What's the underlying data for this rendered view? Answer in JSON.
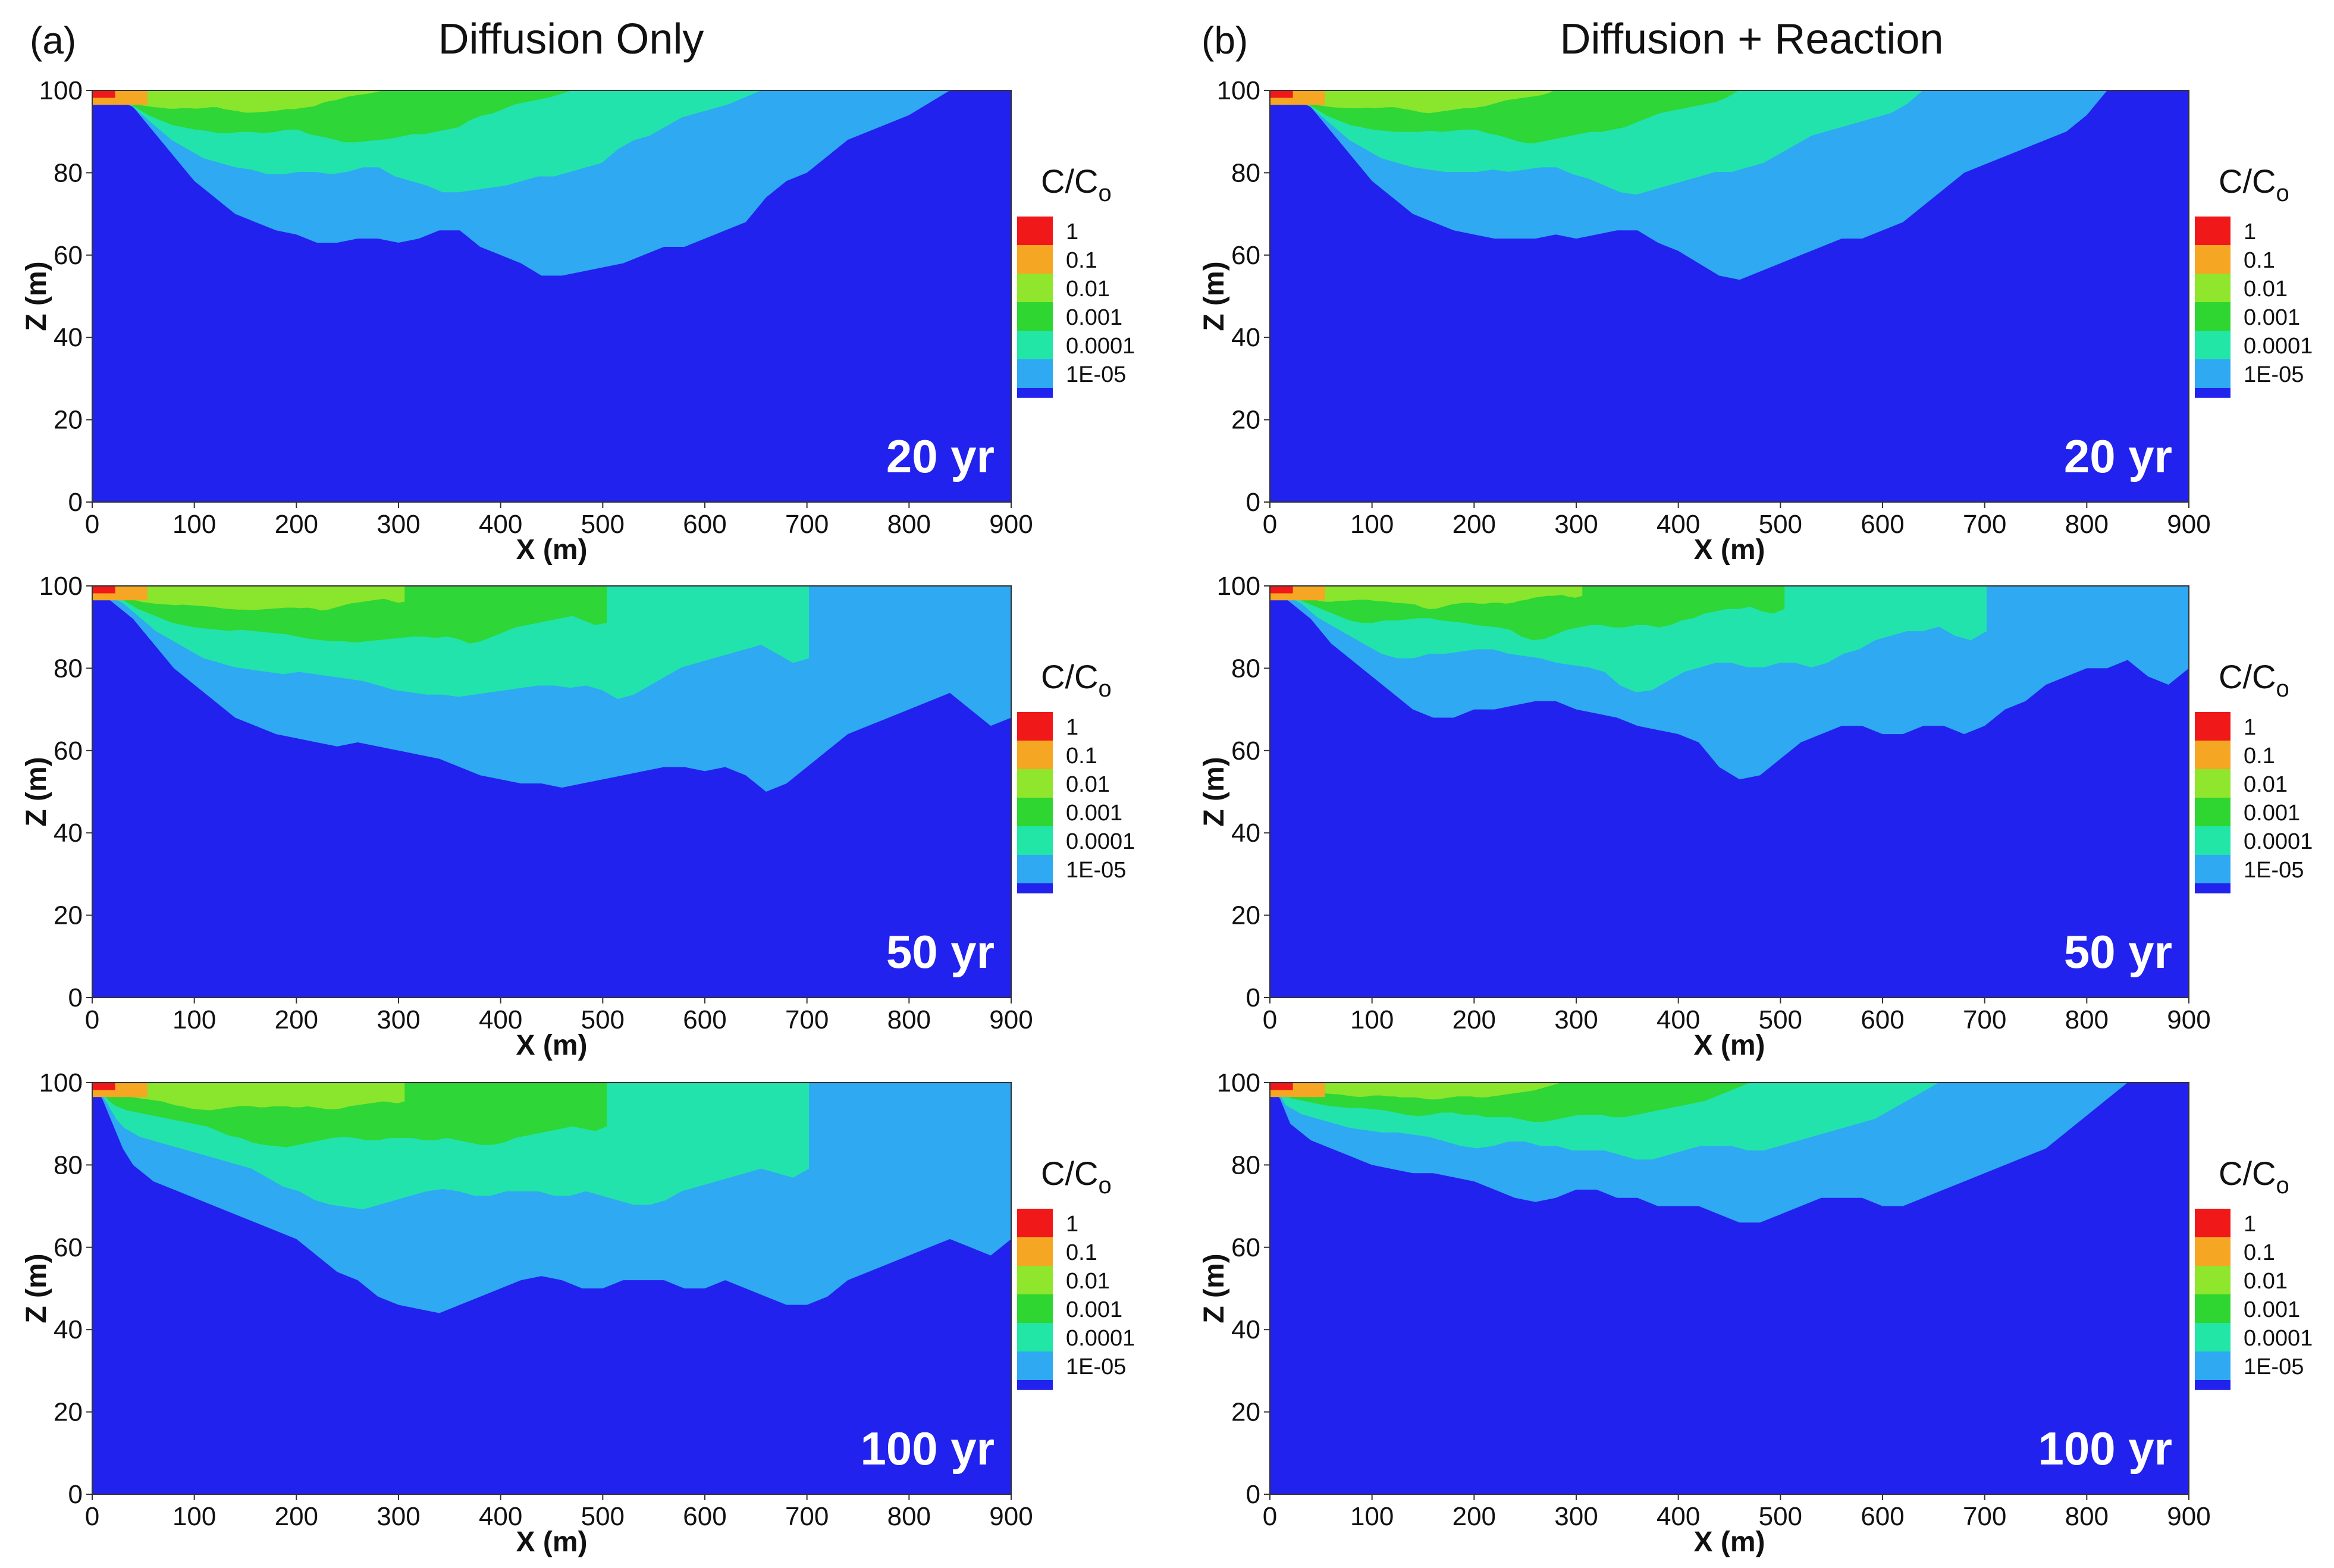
{
  "columns": [
    {
      "letter": "(a)",
      "title": "Diffusion Only"
    },
    {
      "letter": "(b)",
      "title": "Diffusion + Reaction"
    }
  ],
  "axes": {
    "xlabel": "X (m)",
    "ylabel": "Z (m)",
    "xticks": [
      "0",
      "100",
      "200",
      "300",
      "400",
      "500",
      "600",
      "700",
      "800",
      "900"
    ],
    "yticks": [
      "0",
      "20",
      "40",
      "60",
      "80",
      "100"
    ]
  },
  "legend": {
    "title_main": "C/C",
    "title_sub": "o",
    "levels": [
      {
        "label": "1",
        "color": "#f01818"
      },
      {
        "label": "0.1",
        "color": "#f5a623"
      },
      {
        "label": "0.01",
        "color": "#8fe62c"
      },
      {
        "label": "0.001",
        "color": "#2fd530"
      },
      {
        "label": "0.0001",
        "color": "#22e6a6"
      },
      {
        "label": "1E-05",
        "color": "#2ea9f2"
      }
    ],
    "background_color": "#2222ee"
  },
  "chart_data": [
    {
      "type": "heatmap",
      "panel": "a-20",
      "title": "Diffusion Only",
      "time_label": "20 yr",
      "xlabel": "X (m)",
      "ylabel": "Z (m)",
      "xlim": [
        0,
        900
      ],
      "ylim": [
        0,
        100
      ],
      "plume_front_depth_m": [
        [
          0,
          100
        ],
        [
          20,
          98
        ],
        [
          40,
          96
        ],
        [
          60,
          90
        ],
        [
          80,
          84
        ],
        [
          100,
          78
        ],
        [
          120,
          74
        ],
        [
          140,
          70
        ],
        [
          160,
          68
        ],
        [
          180,
          66
        ],
        [
          200,
          65
        ],
        [
          220,
          63
        ],
        [
          240,
          63
        ],
        [
          260,
          64
        ],
        [
          280,
          64
        ],
        [
          300,
          63
        ],
        [
          320,
          64
        ],
        [
          340,
          66
        ],
        [
          360,
          66
        ],
        [
          380,
          62
        ],
        [
          400,
          60
        ],
        [
          420,
          58
        ],
        [
          440,
          55
        ],
        [
          460,
          55
        ],
        [
          480,
          56
        ],
        [
          500,
          57
        ],
        [
          520,
          58
        ],
        [
          540,
          60
        ],
        [
          560,
          62
        ],
        [
          580,
          62
        ],
        [
          600,
          64
        ],
        [
          620,
          66
        ],
        [
          640,
          68
        ],
        [
          660,
          74
        ],
        [
          680,
          78
        ],
        [
          700,
          80
        ],
        [
          720,
          84
        ],
        [
          740,
          88
        ],
        [
          760,
          90
        ],
        [
          780,
          92
        ],
        [
          800,
          94
        ],
        [
          820,
          97
        ],
        [
          840,
          100
        ],
        [
          900,
          100
        ]
      ]
    },
    {
      "type": "heatmap",
      "panel": "b-20",
      "title": "Diffusion + Reaction",
      "time_label": "20 yr",
      "xlabel": "X (m)",
      "ylabel": "Z (m)",
      "xlim": [
        0,
        900
      ],
      "ylim": [
        0,
        100
      ],
      "plume_front_depth_m": [
        [
          0,
          100
        ],
        [
          20,
          98
        ],
        [
          40,
          96
        ],
        [
          60,
          90
        ],
        [
          80,
          84
        ],
        [
          100,
          78
        ],
        [
          120,
          74
        ],
        [
          140,
          70
        ],
        [
          160,
          68
        ],
        [
          180,
          66
        ],
        [
          200,
          65
        ],
        [
          220,
          64
        ],
        [
          240,
          64
        ],
        [
          260,
          64
        ],
        [
          280,
          65
        ],
        [
          300,
          64
        ],
        [
          320,
          65
        ],
        [
          340,
          66
        ],
        [
          360,
          66
        ],
        [
          380,
          63
        ],
        [
          400,
          61
        ],
        [
          420,
          58
        ],
        [
          440,
          55
        ],
        [
          460,
          54
        ],
        [
          480,
          56
        ],
        [
          500,
          58
        ],
        [
          520,
          60
        ],
        [
          540,
          62
        ],
        [
          560,
          64
        ],
        [
          580,
          64
        ],
        [
          600,
          66
        ],
        [
          620,
          68
        ],
        [
          640,
          72
        ],
        [
          660,
          76
        ],
        [
          680,
          80
        ],
        [
          700,
          82
        ],
        [
          720,
          84
        ],
        [
          740,
          86
        ],
        [
          760,
          88
        ],
        [
          780,
          90
        ],
        [
          800,
          94
        ],
        [
          820,
          100
        ],
        [
          900,
          100
        ]
      ]
    },
    {
      "type": "heatmap",
      "panel": "a-50",
      "title": "Diffusion Only",
      "time_label": "50 yr",
      "xlabel": "X (m)",
      "ylabel": "Z (m)",
      "xlim": [
        0,
        900
      ],
      "ylim": [
        0,
        100
      ],
      "plume_front_depth_m": [
        [
          0,
          100
        ],
        [
          20,
          96
        ],
        [
          40,
          92
        ],
        [
          60,
          86
        ],
        [
          80,
          80
        ],
        [
          100,
          76
        ],
        [
          120,
          72
        ],
        [
          140,
          68
        ],
        [
          160,
          66
        ],
        [
          180,
          64
        ],
        [
          200,
          63
        ],
        [
          220,
          62
        ],
        [
          240,
          61
        ],
        [
          260,
          62
        ],
        [
          280,
          61
        ],
        [
          300,
          60
        ],
        [
          320,
          59
        ],
        [
          340,
          58
        ],
        [
          360,
          56
        ],
        [
          380,
          54
        ],
        [
          400,
          53
        ],
        [
          420,
          52
        ],
        [
          440,
          52
        ],
        [
          460,
          51
        ],
        [
          480,
          52
        ],
        [
          500,
          53
        ],
        [
          520,
          54
        ],
        [
          540,
          55
        ],
        [
          560,
          56
        ],
        [
          580,
          56
        ],
        [
          600,
          55
        ],
        [
          620,
          56
        ],
        [
          640,
          54
        ],
        [
          660,
          50
        ],
        [
          680,
          52
        ],
        [
          700,
          56
        ],
        [
          720,
          60
        ],
        [
          740,
          64
        ],
        [
          760,
          66
        ],
        [
          780,
          68
        ],
        [
          800,
          70
        ],
        [
          820,
          72
        ],
        [
          840,
          74
        ],
        [
          860,
          70
        ],
        [
          880,
          66
        ],
        [
          900,
          68
        ]
      ]
    },
    {
      "type": "heatmap",
      "panel": "b-50",
      "title": "Diffusion + Reaction",
      "time_label": "50 yr",
      "xlabel": "X (m)",
      "ylabel": "Z (m)",
      "xlim": [
        0,
        900
      ],
      "ylim": [
        0,
        100
      ],
      "plume_front_depth_m": [
        [
          0,
          100
        ],
        [
          20,
          96
        ],
        [
          40,
          92
        ],
        [
          60,
          86
        ],
        [
          80,
          82
        ],
        [
          100,
          78
        ],
        [
          120,
          74
        ],
        [
          140,
          70
        ],
        [
          160,
          68
        ],
        [
          180,
          68
        ],
        [
          200,
          70
        ],
        [
          220,
          70
        ],
        [
          240,
          71
        ],
        [
          260,
          72
        ],
        [
          280,
          72
        ],
        [
          300,
          70
        ],
        [
          320,
          69
        ],
        [
          340,
          68
        ],
        [
          360,
          66
        ],
        [
          380,
          65
        ],
        [
          400,
          64
        ],
        [
          420,
          62
        ],
        [
          440,
          56
        ],
        [
          460,
          53
        ],
        [
          480,
          54
        ],
        [
          500,
          58
        ],
        [
          520,
          62
        ],
        [
          540,
          64
        ],
        [
          560,
          66
        ],
        [
          580,
          66
        ],
        [
          600,
          64
        ],
        [
          620,
          64
        ],
        [
          640,
          66
        ],
        [
          660,
          66
        ],
        [
          680,
          64
        ],
        [
          700,
          66
        ],
        [
          720,
          70
        ],
        [
          740,
          72
        ],
        [
          760,
          76
        ],
        [
          780,
          78
        ],
        [
          800,
          80
        ],
        [
          820,
          80
        ],
        [
          840,
          82
        ],
        [
          860,
          78
        ],
        [
          880,
          76
        ],
        [
          900,
          80
        ]
      ]
    },
    {
      "type": "heatmap",
      "panel": "a-100",
      "title": "Diffusion Only",
      "time_label": "100 yr",
      "xlabel": "X (m)",
      "ylabel": "Z (m)",
      "xlim": [
        0,
        900
      ],
      "ylim": [
        0,
        100
      ],
      "plume_front_depth_m": [
        [
          0,
          100
        ],
        [
          10,
          96
        ],
        [
          20,
          90
        ],
        [
          30,
          84
        ],
        [
          40,
          80
        ],
        [
          60,
          76
        ],
        [
          80,
          74
        ],
        [
          100,
          72
        ],
        [
          120,
          70
        ],
        [
          140,
          68
        ],
        [
          160,
          66
        ],
        [
          180,
          64
        ],
        [
          200,
          62
        ],
        [
          220,
          58
        ],
        [
          240,
          54
        ],
        [
          260,
          52
        ],
        [
          280,
          48
        ],
        [
          300,
          46
        ],
        [
          320,
          45
        ],
        [
          340,
          44
        ],
        [
          360,
          46
        ],
        [
          380,
          48
        ],
        [
          400,
          50
        ],
        [
          420,
          52
        ],
        [
          440,
          53
        ],
        [
          460,
          52
        ],
        [
          480,
          50
        ],
        [
          500,
          50
        ],
        [
          520,
          52
        ],
        [
          540,
          52
        ],
        [
          560,
          52
        ],
        [
          580,
          50
        ],
        [
          600,
          50
        ],
        [
          620,
          52
        ],
        [
          640,
          50
        ],
        [
          660,
          48
        ],
        [
          680,
          46
        ],
        [
          700,
          46
        ],
        [
          720,
          48
        ],
        [
          740,
          52
        ],
        [
          760,
          54
        ],
        [
          780,
          56
        ],
        [
          800,
          58
        ],
        [
          820,
          60
        ],
        [
          840,
          62
        ],
        [
          860,
          60
        ],
        [
          880,
          58
        ],
        [
          900,
          62
        ]
      ]
    },
    {
      "type": "heatmap",
      "panel": "b-100",
      "title": "Diffusion + Reaction",
      "time_label": "100 yr",
      "xlabel": "X (m)",
      "ylabel": "Z (m)",
      "xlim": [
        0,
        900
      ],
      "ylim": [
        0,
        100
      ],
      "plume_front_depth_m": [
        [
          0,
          100
        ],
        [
          10,
          96
        ],
        [
          20,
          90
        ],
        [
          40,
          86
        ],
        [
          60,
          84
        ],
        [
          80,
          82
        ],
        [
          100,
          80
        ],
        [
          120,
          79
        ],
        [
          140,
          78
        ],
        [
          160,
          78
        ],
        [
          180,
          77
        ],
        [
          200,
          76
        ],
        [
          220,
          74
        ],
        [
          240,
          72
        ],
        [
          260,
          71
        ],
        [
          280,
          72
        ],
        [
          300,
          74
        ],
        [
          320,
          74
        ],
        [
          340,
          72
        ],
        [
          360,
          72
        ],
        [
          380,
          70
        ],
        [
          400,
          70
        ],
        [
          420,
          70
        ],
        [
          440,
          68
        ],
        [
          460,
          66
        ],
        [
          480,
          66
        ],
        [
          500,
          68
        ],
        [
          520,
          70
        ],
        [
          540,
          72
        ],
        [
          560,
          72
        ],
        [
          580,
          72
        ],
        [
          600,
          70
        ],
        [
          620,
          70
        ],
        [
          640,
          72
        ],
        [
          660,
          74
        ],
        [
          680,
          76
        ],
        [
          700,
          78
        ],
        [
          720,
          80
        ],
        [
          740,
          82
        ],
        [
          760,
          84
        ],
        [
          780,
          88
        ],
        [
          800,
          92
        ],
        [
          820,
          96
        ],
        [
          840,
          100
        ],
        [
          900,
          100
        ]
      ]
    }
  ]
}
